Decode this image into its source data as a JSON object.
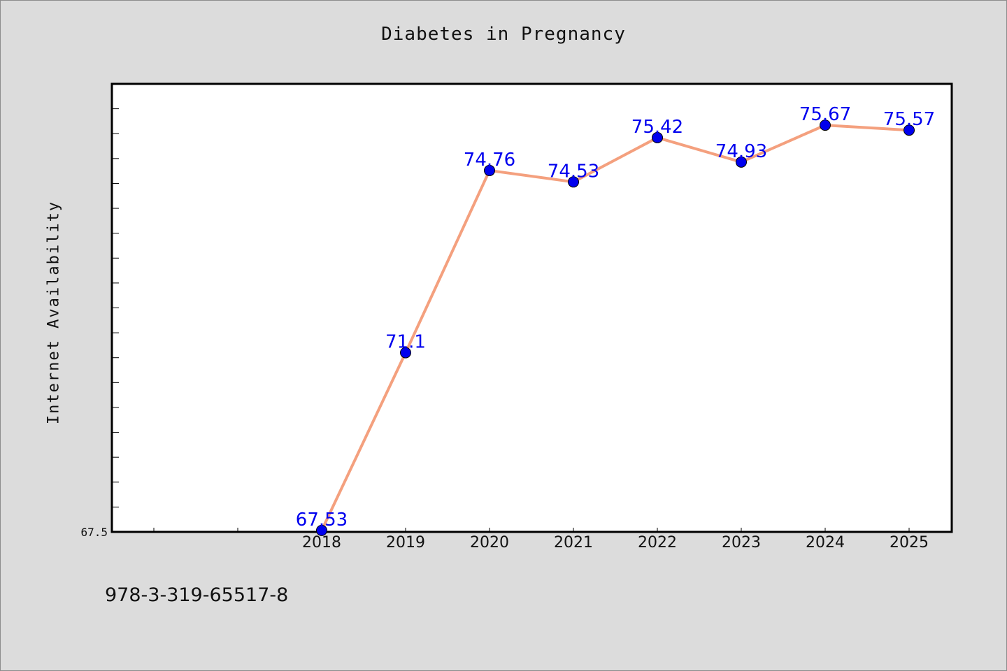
{
  "chart_data": {
    "type": "line",
    "title": "Diabetes in Pregnancy",
    "xlabel": "",
    "ylabel": "Internet Availability",
    "categories": [
      "2018",
      "2019",
      "2020",
      "2021",
      "2022",
      "2023",
      "2024",
      "2025"
    ],
    "values": [
      67.53,
      71.1,
      74.76,
      74.53,
      75.42,
      74.93,
      75.67,
      75.57
    ],
    "data_labels": [
      "67.53",
      "71.1",
      "74.76",
      "74.53",
      "75.42",
      "74.93",
      "75.67",
      "75.57"
    ],
    "ylim": [
      67.5,
      76.5
    ],
    "y_tick_labels": [
      "67.5"
    ],
    "grid": false,
    "line_color": "#f4a07e",
    "marker_color": "#0000ee",
    "label_color": "#0000ee"
  },
  "footer_text": "978-3-319-65517-8"
}
